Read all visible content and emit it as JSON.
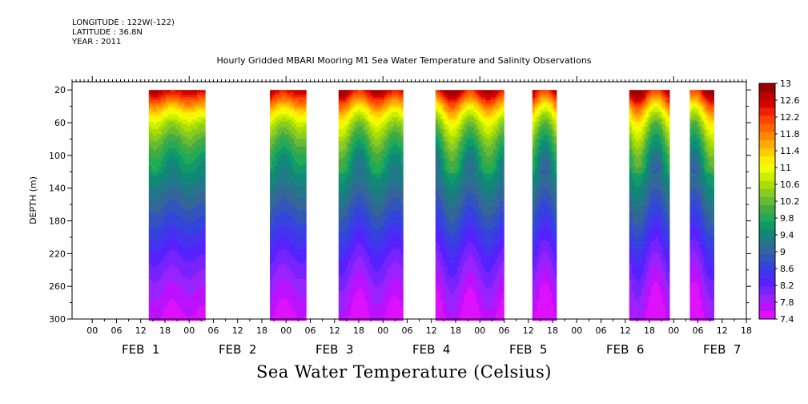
{
  "header": {
    "longitude": "LONGITUDE : 122W(-122)",
    "latitude": "LATITUDE : 36.8N",
    "year": "YEAR : 2011"
  },
  "title": "Hourly Gridded MBARI Mooring M1 Sea Water Temperature and Salinity Observations",
  "xtitle": "Sea Water Temperature (Celsius)",
  "chart_data": {
    "type": "heatmap",
    "title": "Hourly Gridded MBARI Mooring M1 Sea Water Temperature and Salinity Observations",
    "xlabel": "",
    "ylabel": "DEPTH (m)",
    "colorbar_label": "Sea Water Temperature (Celsius)",
    "y_range": [
      300,
      10
    ],
    "y_ticks": [
      20,
      60,
      100,
      140,
      180,
      220,
      260,
      300
    ],
    "x_range_hours": [
      -5,
      162
    ],
    "x_hour_ticks": [
      "00",
      "06",
      "12",
      "18",
      "00",
      "06",
      "12",
      "18",
      "00",
      "06",
      "12",
      "18",
      "00",
      "06",
      "12",
      "18",
      "00",
      "06",
      "12",
      "18",
      "00",
      "06",
      "12",
      "18",
      "00",
      "06",
      "12",
      "18"
    ],
    "day_labels": [
      "FEB  1",
      "FEB  2",
      "FEB  3",
      "FEB  4",
      "FEB  5",
      "FEB  6",
      "FEB  7"
    ],
    "data_segments_hours": [
      [
        14,
        28
      ],
      [
        44,
        53
      ],
      [
        61,
        77
      ],
      [
        85,
        102
      ],
      [
        109,
        115
      ],
      [
        133,
        143
      ],
      [
        148,
        154
      ]
    ],
    "data_top_depth": 20,
    "colorbar_levels": [
      13,
      12.6,
      12.2,
      11.8,
      11.4,
      11,
      10.6,
      10.2,
      9.8,
      9.4,
      9,
      8.6,
      8.2,
      7.8,
      7.4
    ],
    "colorbar_colors": [
      "#990000",
      "#bb0000",
      "#d50000",
      "#ee2200",
      "#ff4400",
      "#ff6600",
      "#ff8800",
      "#ffaa00",
      "#ffcc00",
      "#ffee00",
      "#eeff00",
      "#ccee00",
      "#aadd00",
      "#88cc22",
      "#66bb33",
      "#44aa44",
      "#22aa55",
      "#11996a",
      "#118877",
      "#227788",
      "#336699",
      "#3355bb",
      "#3344dd",
      "#4433ee",
      "#5522ff",
      "#7722ff",
      "#9922ff",
      "#bb11ff",
      "#dd11ff"
    ],
    "temperature_profile": [
      [
        20,
        12.6
      ],
      [
        30,
        12.0
      ],
      [
        45,
        11.2
      ],
      [
        60,
        10.6
      ],
      [
        80,
        10.1
      ],
      [
        100,
        9.7
      ],
      [
        140,
        9.2
      ],
      [
        180,
        8.7
      ],
      [
        220,
        8.2
      ],
      [
        260,
        7.8
      ],
      [
        300,
        7.5
      ]
    ]
  }
}
